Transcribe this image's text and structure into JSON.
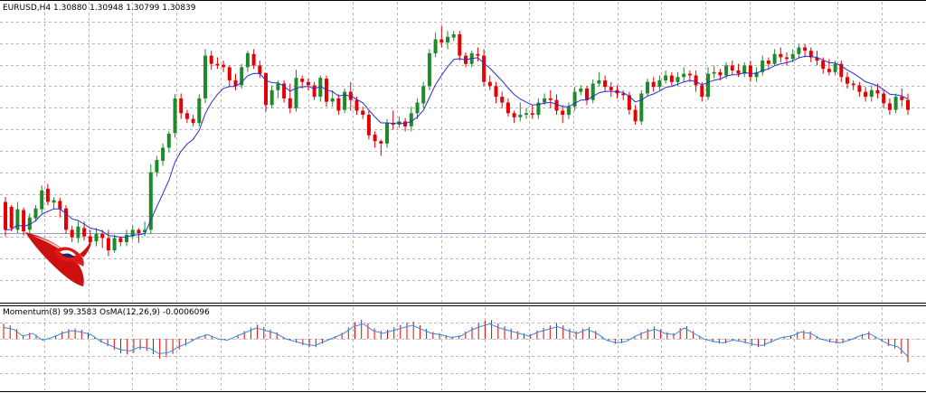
{
  "main_chart": {
    "symbol": "EURUSD,H4",
    "prices": [
      "1.30880",
      "1.30948",
      "1.30799",
      "1.30839"
    ]
  },
  "subwindow": {
    "indicators": [
      "Momentum(8) 99.3583",
      "OsMA(12,26,9) -0.0006096"
    ]
  },
  "colors": {
    "bull_candle": "#1e8a2a",
    "bear_candle": "#e60000",
    "moving_average": "#2b2bd6",
    "momentum_line": "#2e8fe0",
    "osma_histogram": "#e60000",
    "grid": "#b8b8b8",
    "price_line": "#8fa3c0"
  },
  "logo": {
    "name": "bull-logo"
  },
  "chart_data": [
    {
      "type": "candlestick",
      "title": "EURUSD,H4 1.30880 1.30948 1.30799 1.30839",
      "series": [
        {
          "name": "EURUSD,H4",
          "values": [
            [
              104,
              70,
              62,
              110
            ],
            [
              98,
              72,
              68,
              100
            ],
            [
              70,
              95,
              66,
              104
            ],
            [
              94,
              68,
              63,
              97
            ],
            [
              70,
              85,
              64,
              90
            ],
            [
              84,
              96,
              80,
              100
            ],
            [
              95,
              118,
              90,
              124
            ],
            [
              120,
              104,
              100,
              126
            ],
            [
              103,
              106,
              95,
              110
            ],
            [
              105,
              95,
              85,
              109
            ],
            [
              96,
              70,
              65,
              100
            ],
            [
              70,
              61,
              55,
              75
            ],
            [
              60,
              74,
              54,
              80
            ],
            [
              72,
              62,
              57,
              80
            ],
            [
              62,
              55,
              50,
              70
            ],
            [
              56,
              65,
              50,
              72
            ],
            [
              65,
              60,
              48,
              70
            ],
            [
              60,
              45,
              38,
              70
            ],
            [
              45,
              60,
              42,
              64
            ],
            [
              60,
              55,
              50,
              62
            ],
            [
              55,
              64,
              50,
              70
            ],
            [
              62,
              70,
              58,
              75
            ],
            [
              70,
              66,
              54,
              72
            ],
            [
              67,
              70,
              62,
              80
            ],
            [
              70,
              140,
              65,
              150
            ],
            [
              140,
              155,
              135,
              160
            ],
            [
              154,
              170,
              148,
              175
            ],
            [
              170,
              187,
              164,
              190
            ],
            [
              188,
              230,
              182,
              235
            ],
            [
              230,
              212,
              205,
              236
            ],
            [
              212,
              205,
              200,
              216
            ],
            [
              205,
              200,
              196,
              210
            ],
            [
              200,
              230,
              196,
              235
            ],
            [
              230,
              282,
              224,
              290
            ],
            [
              282,
              272,
              265,
              288
            ],
            [
              272,
              270,
              266,
              280
            ],
            [
              271,
              268,
              262,
              276
            ],
            [
              268,
              252,
              245,
              270
            ],
            [
              252,
              245,
              240,
              260
            ],
            [
              246,
              268,
              242,
              272
            ],
            [
              268,
              285,
              262,
              288
            ],
            [
              284,
              270,
              266,
              290
            ],
            [
              270,
              260,
              255,
              276
            ],
            [
              261,
              222,
              214,
              228
            ],
            [
              222,
              240,
              218,
              246
            ],
            [
              240,
              248,
              230,
              252
            ],
            [
              248,
              230,
              225,
              252
            ],
            [
              230,
              218,
              212,
              248
            ],
            [
              218,
              255,
              214,
              265
            ],
            [
              254,
              250,
              242,
              258
            ],
            [
              250,
              246,
              240,
              254
            ],
            [
              246,
              232,
              228,
              250
            ],
            [
              232,
              255,
              226,
              258
            ],
            [
              254,
              226,
              220,
              258
            ],
            [
              226,
              230,
              220,
              240
            ],
            [
              230,
              215,
              210,
              235
            ],
            [
              216,
              238,
              212,
              242
            ],
            [
              238,
              228,
              215,
              250
            ],
            [
              228,
              215,
              210,
              232
            ],
            [
              215,
              210,
              205,
              220
            ],
            [
              210,
              185,
              180,
              215
            ],
            [
              186,
              178,
              170,
              190
            ],
            [
              178,
              175,
              160,
              180
            ],
            [
              175,
              200,
              170,
              205
            ],
            [
              200,
              198,
              192,
              215
            ],
            [
              198,
              202,
              194,
              208
            ],
            [
              202,
              196,
              190,
              206
            ],
            [
              196,
              212,
              190,
              220
            ],
            [
              212,
              225,
              205,
              230
            ],
            [
              224,
              245,
              218,
              250
            ],
            [
              245,
              285,
              240,
              290
            ],
            [
              285,
              302,
              280,
              310
            ],
            [
              302,
              298,
              292,
              318
            ],
            [
              298,
              305,
              290,
              312
            ],
            [
              304,
              308,
              300,
              312
            ],
            [
              308,
              282,
              276,
              312
            ],
            [
              282,
              272,
              268,
              286
            ],
            [
              272,
              285,
              268,
              288
            ],
            [
              284,
              282,
              275,
              292
            ],
            [
              282,
              250,
              245,
              290
            ],
            [
              250,
              245,
              240,
              258
            ],
            [
              245,
              232,
              224,
              250
            ],
            [
              232,
              225,
              218,
              238
            ],
            [
              225,
              212,
              208,
              230
            ],
            [
              212,
              207,
              200,
              215
            ],
            [
              207,
              210,
              202,
              225
            ],
            [
              210,
              212,
              205,
              218
            ],
            [
              212,
              210,
              205,
              222
            ],
            [
              210,
              225,
              205,
              230
            ],
            [
              225,
              230,
              222,
              236
            ],
            [
              230,
              228,
              218,
              240
            ],
            [
              228,
              215,
              210,
              235
            ],
            [
              215,
              210,
              200,
              222
            ],
            [
              210,
              220,
              205,
              225
            ],
            [
              220,
              238,
              215,
              244
            ],
            [
              238,
              242,
              234,
              246
            ],
            [
              242,
              228,
              222,
              245
            ],
            [
              228,
              248,
              224,
              253
            ],
            [
              248,
              252,
              244,
              262
            ],
            [
              252,
              244,
              238,
              258
            ],
            [
              244,
              240,
              232,
              250
            ],
            [
              240,
              236,
              230,
              246
            ],
            [
              236,
              234,
              228,
              240
            ],
            [
              234,
              216,
              210,
              238
            ],
            [
              216,
              202,
              198,
              222
            ],
            [
              202,
              236,
              198,
              240
            ],
            [
              236,
              250,
              232,
              254
            ],
            [
              250,
              244,
              238,
              256
            ],
            [
              244,
              252,
              240,
              258
            ],
            [
              252,
              258,
              248,
              264
            ],
            [
              258,
              250,
              244,
              262
            ],
            [
              250,
              256,
              245,
              262
            ],
            [
              256,
              260,
              250,
              268
            ],
            [
              260,
              258,
              250,
              264
            ],
            [
              258,
              246,
              238,
              264
            ],
            [
              246,
              232,
              226,
              250
            ],
            [
              232,
              260,
              228,
              268
            ],
            [
              260,
              262,
              254,
              270
            ],
            [
              262,
              258,
              252,
              266
            ],
            [
              258,
              270,
              254,
              274
            ],
            [
              270,
              264,
              258,
              276
            ],
            [
              264,
              260,
              256,
              272
            ],
            [
              260,
              270,
              256,
              274
            ],
            [
              270,
              256,
              250,
              276
            ],
            [
              256,
              262,
              250,
              268
            ],
            [
              262,
              276,
              258,
              282
            ],
            [
              276,
              272,
              265,
              280
            ],
            [
              272,
              284,
              270,
              290
            ],
            [
              284,
              280,
              274,
              292
            ],
            [
              280,
              278,
              270,
              286
            ],
            [
              278,
              284,
              274,
              290
            ],
            [
              284,
              292,
              280,
              296
            ],
            [
              292,
              288,
              280,
              296
            ],
            [
              288,
              280,
              274,
              292
            ],
            [
              280,
              276,
              270,
              288
            ],
            [
              276,
              266,
              260,
              280
            ],
            [
              266,
              262,
              258,
              278
            ],
            [
              262,
              272,
              258,
              276
            ],
            [
              272,
              256,
              250,
              276
            ],
            [
              256,
              248,
              242,
              262
            ],
            [
              248,
              246,
              240,
              252
            ],
            [
              246,
              238,
              232,
              250
            ],
            [
              238,
              232,
              226,
              244
            ],
            [
              232,
              240,
              226,
              246
            ],
            [
              240,
              236,
              230,
              248
            ],
            [
              236,
              224,
              218,
              240
            ],
            [
              224,
              216,
              210,
              230
            ],
            [
              216,
              232,
              212,
              236
            ],
            [
              232,
              228,
              220,
              242
            ],
            [
              228,
              216,
              210,
              236
            ]
          ]
        }
      ]
    },
    {
      "type": "line",
      "series": [
        {
          "name": "Momentum(8)",
          "values": [
            100.42,
            100.35,
            100.1,
            100.2,
            99.95,
            100.05,
            100.2,
            100.3,
            100.25,
            100.15,
            99.9,
            99.75,
            99.6,
            99.55,
            99.7,
            99.65,
            99.45,
            99.5,
            99.7,
            99.85,
            100.05,
            100.15,
            100.0,
            99.95,
            100.1,
            100.25,
            100.4,
            100.3,
            100.2,
            100.0,
            99.9,
            99.8,
            99.75,
            99.9,
            100.05,
            100.2,
            100.45,
            100.55,
            100.3,
            100.2,
            100.3,
            100.4,
            100.5,
            100.35,
            100.2,
            100.15,
            100.05,
            100.1,
            100.3,
            100.45,
            100.55,
            100.4,
            100.3,
            100.2,
            100.1,
            100.25,
            100.35,
            100.45,
            100.3,
            100.2,
            100.35,
            100.2,
            99.95,
            99.85,
            99.9,
            100.1,
            100.25,
            100.35,
            100.2,
            100.15,
            100.4,
            100.2,
            100.0,
            99.9,
            99.85,
            99.95,
            99.9,
            99.8,
            99.75,
            99.9,
            100.05,
            100.1,
            100.25,
            100.2,
            100.0,
            99.9,
            99.85,
            99.95,
            100.1,
            100.2,
            100.0,
            99.8,
            99.7,
            99.35
          ]
        }
      ]
    }
  ]
}
